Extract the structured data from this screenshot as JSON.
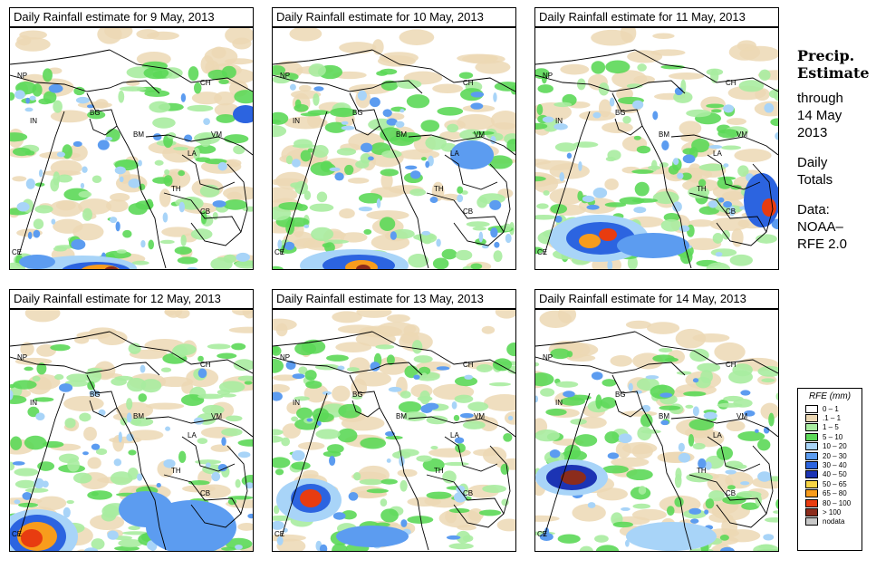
{
  "panels": [
    {
      "title": "Daily Rainfall estimate for  9 May, 2013"
    },
    {
      "title": "Daily Rainfall estimate for  10 May, 2013"
    },
    {
      "title": "Daily Rainfall estimate for  11 May, 2013"
    },
    {
      "title": "Daily Rainfall estimate for  12 May, 2013"
    },
    {
      "title": "Daily Rainfall estimate for  13 May, 2013"
    },
    {
      "title": "Daily Rainfall estimate for  14 May, 2013"
    }
  ],
  "country_labels": [
    "NP",
    "CH",
    "IN",
    "BG",
    "BM",
    "VM",
    "LA",
    "TH",
    "CB",
    "CE"
  ],
  "sidebar": {
    "title_line1": "Precip.",
    "title_line2": "Estimate",
    "through": "through",
    "date_line1": "14 May",
    "date_line2": "2013",
    "daily_line1": "Daily",
    "daily_line2": "Totals",
    "data_line1": "Data:",
    "data_line2": "NOAA–",
    "data_line3": "RFE 2.0"
  },
  "legend": {
    "title": "RFE (mm)",
    "items": [
      {
        "label": "0 – 1",
        "color": "#ffffff"
      },
      {
        "label": ".1 – 1",
        "color": "#ecd8b4"
      },
      {
        "label": "1 – 5",
        "color": "#a8eca0"
      },
      {
        "label": "5 – 10",
        "color": "#5cd858"
      },
      {
        "label": "10 – 20",
        "color": "#a8d4f8"
      },
      {
        "label": "20 – 30",
        "color": "#5c9cf0"
      },
      {
        "label": "30 – 40",
        "color": "#2c64e0"
      },
      {
        "label": "40 – 50",
        "color": "#1c34b4"
      },
      {
        "label": "50 – 65",
        "color": "#f8d444"
      },
      {
        "label": "65 – 80",
        "color": "#f89c1c"
      },
      {
        "label": "80 – 100",
        "color": "#e83c10"
      },
      {
        "label": "> 100",
        "color": "#8c2c1c"
      },
      {
        "label": "nodata",
        "color": "#c8c8c8"
      }
    ]
  }
}
